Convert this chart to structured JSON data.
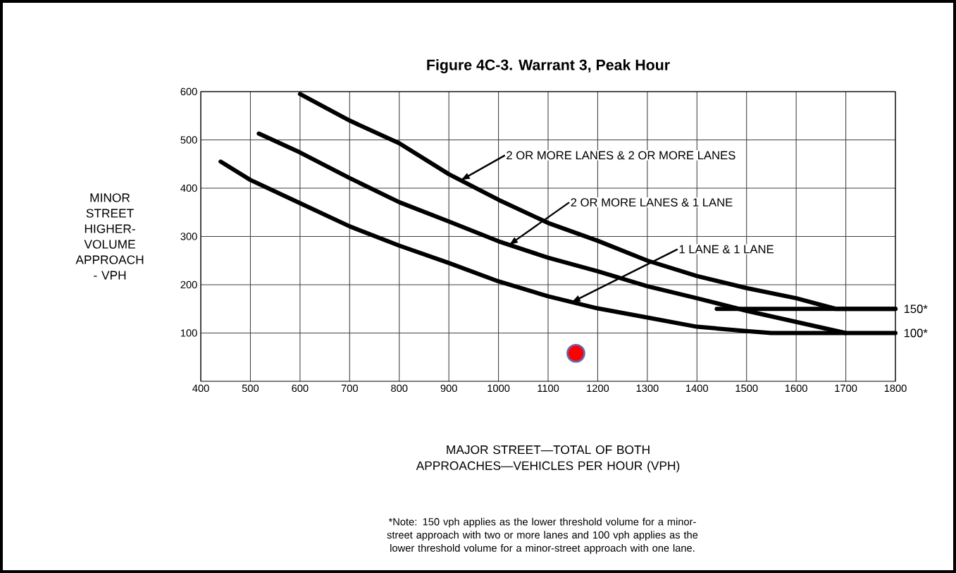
{
  "chart_data": {
    "type": "line",
    "title": "Figure 4C-3. Warrant 3, Peak Hour",
    "xlabel": "MAJOR STREET—TOTAL OF BOTH APPROACHES—VEHICLES PER HOUR (VPH)",
    "ylabel": "MINOR STREET HIGHER-VOLUME APPROACH - VPH",
    "xlim": [
      400,
      1800
    ],
    "ylim": [
      0,
      600
    ],
    "xticks": [
      400,
      500,
      600,
      700,
      800,
      900,
      1000,
      1100,
      1200,
      1300,
      1400,
      1500,
      1600,
      1700,
      1800
    ],
    "yticks": [
      100,
      200,
      300,
      400,
      500,
      600
    ],
    "grid": true,
    "series": [
      {
        "color": "#000000",
        "x": [
          600,
          700,
          800,
          900,
          1000,
          1100,
          1200,
          1300,
          1400,
          1500,
          1600,
          1680,
          1800
        ],
        "values": [
          595,
          540,
          493,
          429,
          376,
          328,
          291,
          250,
          218,
          193,
          172,
          150,
          150
        ]
      },
      {
        "color": "#000000",
        "x": [
          517,
          600,
          700,
          800,
          900,
          1000,
          1100,
          1200,
          1300,
          1400,
          1500,
          1600,
          1700
        ],
        "values": [
          513,
          474,
          421,
          371,
          331,
          290,
          256,
          228,
          197,
          172,
          146,
          123,
          100
        ]
      },
      {
        "color": "#000000",
        "x": [
          440,
          500,
          600,
          700,
          800,
          900,
          1000,
          1100,
          1200,
          1300,
          1400,
          1500,
          1550,
          1800
        ],
        "values": [
          455,
          417,
          369,
          321,
          281,
          245,
          207,
          176,
          151,
          132,
          113,
          104,
          100,
          100
        ]
      },
      {
        "color": "#000000",
        "x": [
          1440,
          1800
        ],
        "values": [
          150,
          150
        ]
      },
      {
        "type": "scatter",
        "color": "#ff0000",
        "marker": "circle",
        "x": [
          1156
        ],
        "values": [
          58
        ]
      }
    ],
    "annotations": [
      {
        "text": "2 OR MORE LANES & 2 OR MORE LANES",
        "x": 925,
        "y": 417
      },
      {
        "text": "2 OR MORE LANES & 1 LANE",
        "x": 1022,
        "y": 283
      },
      {
        "text": "1 LANE & 1 LANE",
        "x": 1148,
        "y": 164
      },
      {
        "text": "150*",
        "x": 1800,
        "y": 150
      },
      {
        "text": "100*",
        "x": 1800,
        "y": 100
      },
      "*Note: 150 vph applies as the lower threshold volume for a minor-street approach with two or more lanes and 100 vph applies as the lower threshold volume for a minor-street approach with one lane."
    ]
  }
}
